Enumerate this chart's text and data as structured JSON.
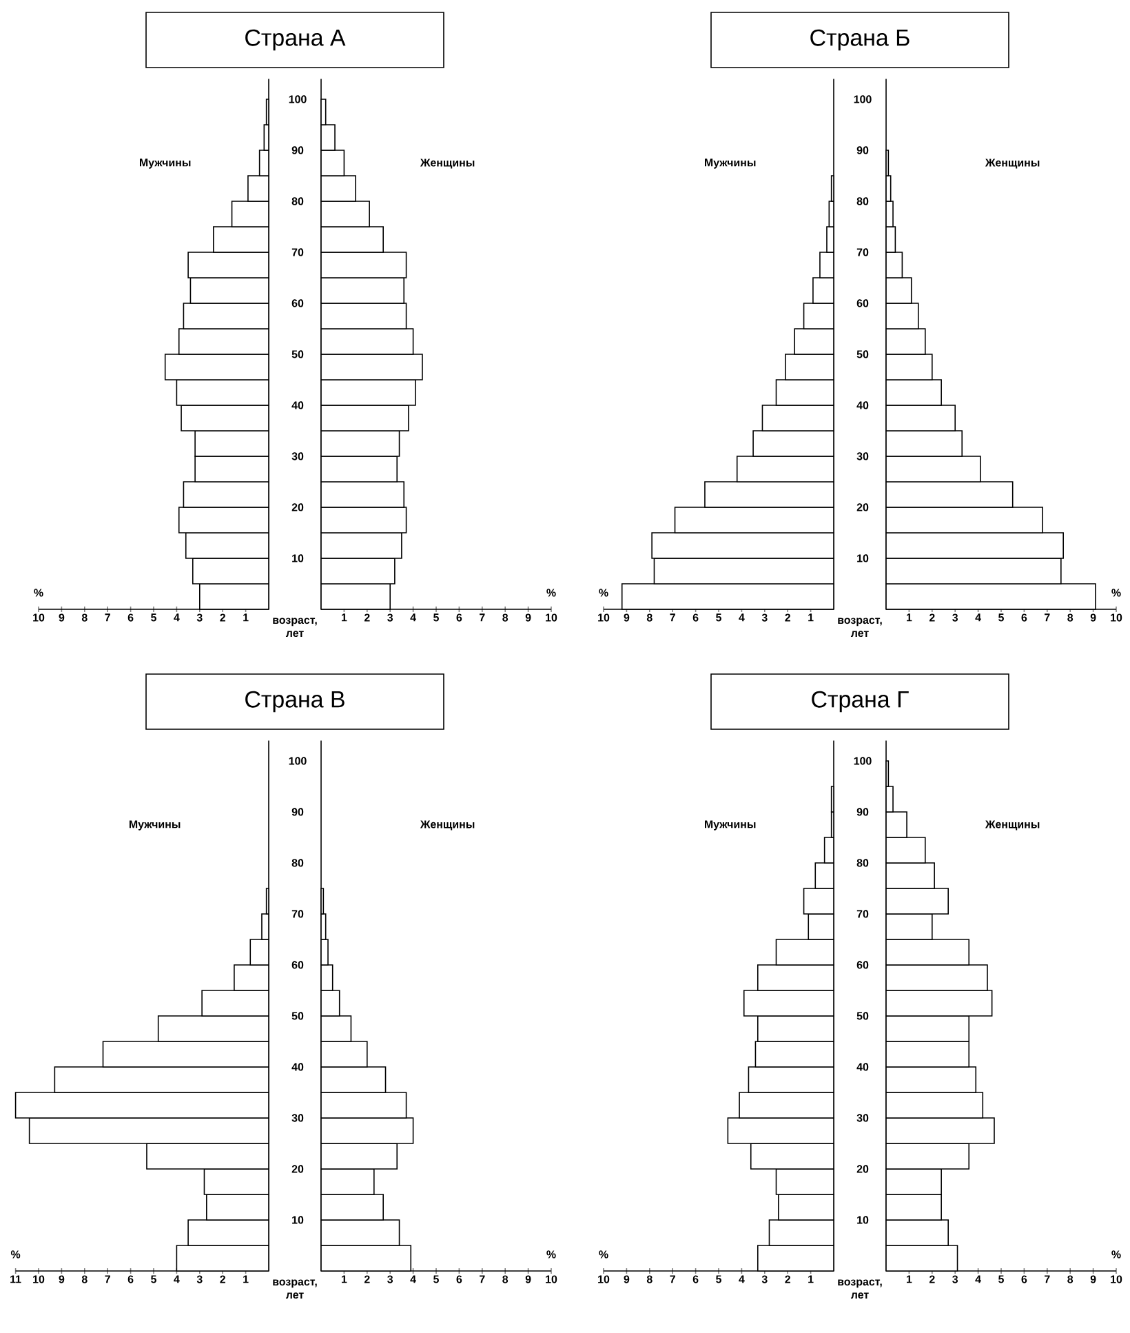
{
  "chart_data": [
    {
      "type": "bar",
      "orientation": "horizontal",
      "title": "Страна А",
      "xlabel": "возраст, лет",
      "annotations": [
        "%"
      ],
      "x": [
        2.5,
        7.5,
        12.5,
        17.5,
        22.5,
        27.5,
        32.5,
        37.5,
        42.5,
        47.5,
        52.5,
        57.5,
        62.5,
        67.5,
        72.5,
        77.5,
        82.5,
        87.5,
        92.5,
        97.5
      ],
      "xlim": [
        10,
        0
      ],
      "xticks": [
        10,
        9,
        8,
        7,
        6,
        5,
        4,
        3,
        2,
        1
      ],
      "ylim": [
        0,
        104
      ],
      "yticks": [
        10,
        20,
        30,
        40,
        50,
        60,
        70,
        80,
        90,
        100
      ],
      "series": [
        {
          "name": "Мужчины",
          "color": "#ffffff",
          "values": [
            3.0,
            3.3,
            3.6,
            3.9,
            3.7,
            3.2,
            3.2,
            3.8,
            4.0,
            4.5,
            3.9,
            3.7,
            3.4,
            3.5,
            2.4,
            1.6,
            0.9,
            0.4,
            0.2,
            0.1
          ]
        }
      ]
    },
    {
      "type": "bar",
      "orientation": "horizontal",
      "annotations": [
        "%"
      ],
      "tick_labels": "x",
      "x": [
        2.5,
        7.5,
        12.5,
        17.5,
        22.5,
        27.5,
        32.5,
        37.5,
        42.5,
        47.5,
        52.5,
        57.5,
        62.5,
        67.5,
        72.5,
        77.5,
        82.5,
        87.5,
        92.5,
        97.5
      ],
      "xlim": [
        0,
        10
      ],
      "xticks": [
        1,
        2,
        3,
        4,
        5,
        6,
        7,
        8,
        9,
        10
      ],
      "ylim": [
        0,
        104
      ],
      "yticks": [
        10,
        20,
        30,
        40,
        50,
        60,
        70,
        80,
        90,
        100
      ],
      "series": [
        {
          "name": "Женщины",
          "color": "#ffffff",
          "values": [
            3.0,
            3.2,
            3.5,
            3.7,
            3.6,
            3.3,
            3.4,
            3.8,
            4.1,
            4.4,
            4.0,
            3.7,
            3.6,
            3.7,
            2.7,
            2.1,
            1.5,
            1.0,
            0.6,
            0.2
          ]
        }
      ]
    },
    {
      "type": "bar",
      "orientation": "horizontal",
      "title": "Страна Б",
      "xlabel": "возраст, лет",
      "annotations": [
        "%"
      ],
      "x": [
        2.5,
        7.5,
        12.5,
        17.5,
        22.5,
        27.5,
        32.5,
        37.5,
        42.5,
        47.5,
        52.5,
        57.5,
        62.5,
        67.5,
        72.5,
        77.5,
        82.5
      ],
      "xlim": [
        10,
        0
      ],
      "xticks": [
        10,
        9,
        8,
        7,
        6,
        5,
        4,
        3,
        2,
        1
      ],
      "ylim": [
        0,
        104
      ],
      "yticks": [
        10,
        20,
        30,
        40,
        50,
        60,
        70,
        80,
        90,
        100
      ],
      "series": [
        {
          "name": "Мужчины",
          "color": "#ffffff",
          "values": [
            9.2,
            7.8,
            7.9,
            6.9,
            5.6,
            4.2,
            3.5,
            3.1,
            2.5,
            2.1,
            1.7,
            1.3,
            0.9,
            0.6,
            0.3,
            0.2,
            0.1
          ]
        }
      ]
    },
    {
      "type": "bar",
      "orientation": "horizontal",
      "annotations": [
        "%"
      ],
      "tick_labels": "x",
      "x": [
        2.5,
        7.5,
        12.5,
        17.5,
        22.5,
        27.5,
        32.5,
        37.5,
        42.5,
        47.5,
        52.5,
        57.5,
        62.5,
        67.5,
        72.5,
        77.5,
        82.5,
        87.5
      ],
      "xlim": [
        0,
        10
      ],
      "xticks": [
        1,
        2,
        3,
        4,
        5,
        6,
        7,
        8,
        9,
        10
      ],
      "ylim": [
        0,
        104
      ],
      "yticks": [
        10,
        20,
        30,
        40,
        50,
        60,
        70,
        80,
        90,
        100
      ],
      "series": [
        {
          "name": "Женщины",
          "color": "#ffffff",
          "values": [
            9.1,
            7.6,
            7.7,
            6.8,
            5.5,
            4.1,
            3.3,
            3.0,
            2.4,
            2.0,
            1.7,
            1.4,
            1.1,
            0.7,
            0.4,
            0.3,
            0.2,
            0.1
          ]
        }
      ]
    },
    {
      "type": "bar",
      "orientation": "horizontal",
      "title": "Страна В",
      "xlabel": "возраст, лет",
      "annotations": [
        "%"
      ],
      "x": [
        2.5,
        7.5,
        12.5,
        17.5,
        22.5,
        27.5,
        32.5,
        37.5,
        42.5,
        47.5,
        52.5,
        57.5,
        62.5,
        67.5,
        72.5
      ],
      "xlim": [
        11,
        0
      ],
      "xticks": [
        11,
        10,
        9,
        8,
        7,
        6,
        5,
        4,
        3,
        2,
        1
      ],
      "ylim": [
        0,
        104
      ],
      "yticks": [
        10,
        20,
        30,
        40,
        50,
        60,
        70,
        80,
        90,
        100
      ],
      "series": [
        {
          "name": "Мужчины",
          "color": "#ffffff",
          "values": [
            4.0,
            3.5,
            2.7,
            2.8,
            5.3,
            10.4,
            11.0,
            9.3,
            7.2,
            4.8,
            2.9,
            1.5,
            0.8,
            0.3,
            0.1
          ]
        }
      ]
    },
    {
      "type": "bar",
      "orientation": "horizontal",
      "annotations": [
        "%"
      ],
      "tick_labels": "x",
      "x": [
        2.5,
        7.5,
        12.5,
        17.5,
        22.5,
        27.5,
        32.5,
        37.5,
        42.5,
        47.5,
        52.5,
        57.5,
        62.5,
        67.5,
        72.5
      ],
      "xlim": [
        0,
        10
      ],
      "xticks": [
        1,
        2,
        3,
        4,
        5,
        6,
        7,
        8,
        9,
        10
      ],
      "ylim": [
        0,
        104
      ],
      "yticks": [
        10,
        20,
        30,
        40,
        50,
        60,
        70,
        80,
        90,
        100
      ],
      "series": [
        {
          "name": "Женщины",
          "color": "#ffffff",
          "values": [
            3.9,
            3.4,
            2.7,
            2.3,
            3.3,
            4.0,
            3.7,
            2.8,
            2.0,
            1.3,
            0.8,
            0.5,
            0.3,
            0.2,
            0.1
          ]
        }
      ]
    },
    {
      "type": "bar",
      "orientation": "horizontal",
      "title": "Страна Г",
      "xlabel": "возраст, лет",
      "annotations": [
        "%"
      ],
      "x": [
        2.5,
        7.5,
        12.5,
        17.5,
        22.5,
        27.5,
        32.5,
        37.5,
        42.5,
        47.5,
        52.5,
        57.5,
        62.5,
        67.5,
        72.5,
        77.5,
        82.5,
        87.5,
        92.5
      ],
      "xlim": [
        10,
        0
      ],
      "xticks": [
        10,
        9,
        8,
        7,
        6,
        5,
        4,
        3,
        2,
        1
      ],
      "ylim": [
        0,
        104
      ],
      "yticks": [
        10,
        20,
        30,
        40,
        50,
        60,
        70,
        80,
        90,
        100
      ],
      "series": [
        {
          "name": "Мужчины",
          "color": "#ffffff",
          "values": [
            3.3,
            2.8,
            2.4,
            2.5,
            3.6,
            4.6,
            4.1,
            3.7,
            3.4,
            3.3,
            3.9,
            3.3,
            2.5,
            1.1,
            1.3,
            0.8,
            0.4,
            0.1,
            0.1
          ]
        }
      ]
    },
    {
      "type": "bar",
      "orientation": "horizontal",
      "annotations": [
        "%"
      ],
      "tick_labels": "x",
      "x": [
        2.5,
        7.5,
        12.5,
        17.5,
        22.5,
        27.5,
        32.5,
        37.5,
        42.5,
        47.5,
        52.5,
        57.5,
        62.5,
        67.5,
        72.5,
        77.5,
        82.5,
        87.5,
        92.5,
        97.5
      ],
      "xlim": [
        0,
        10
      ],
      "xticks": [
        1,
        2,
        3,
        4,
        5,
        6,
        7,
        8,
        9,
        10
      ],
      "ylim": [
        0,
        104
      ],
      "yticks": [
        10,
        20,
        30,
        40,
        50,
        60,
        70,
        80,
        90,
        100
      ],
      "series": [
        {
          "name": "Женщины",
          "color": "#ffffff",
          "values": [
            3.1,
            2.7,
            2.4,
            2.4,
            3.6,
            4.7,
            4.2,
            3.9,
            3.6,
            3.6,
            4.6,
            4.4,
            3.6,
            2.0,
            2.7,
            2.1,
            1.7,
            0.9,
            0.3,
            0.1
          ]
        }
      ]
    }
  ]
}
